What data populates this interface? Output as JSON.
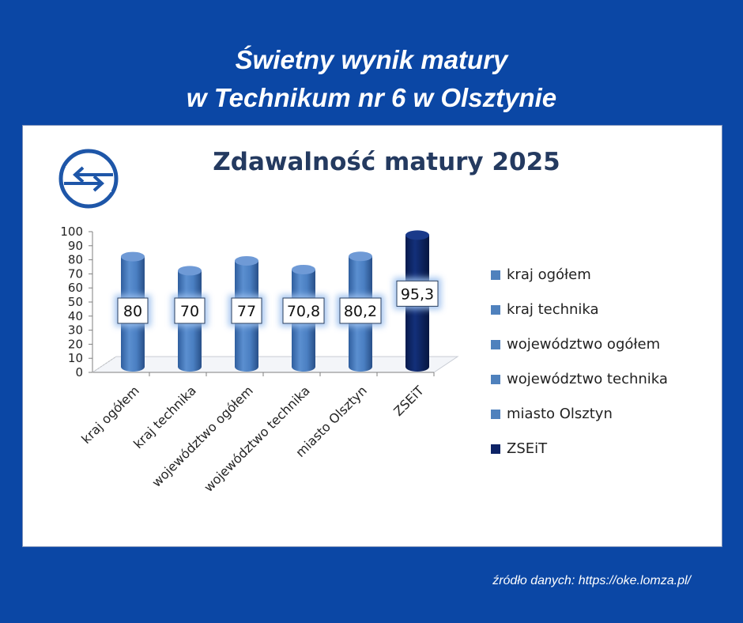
{
  "header": {
    "line1": "Świetny wynik matury",
    "line2": "w Technikum nr 6 w Olsztynie"
  },
  "footer": {
    "source": "źródło danych: https://oke.lomza.pl/"
  },
  "chart_data": {
    "type": "bar",
    "title": "Zdawalność matury 2025",
    "categories": [
      "kraj ogółem",
      "kraj technika",
      "województwo ogółem",
      "województwo technika",
      "miasto Olsztyn",
      "ZSEiT"
    ],
    "values": [
      80,
      70,
      77,
      70.8,
      80.2,
      95.3
    ],
    "data_labels": [
      "80",
      "70",
      "77",
      "70,8",
      "80,2",
      "95,3"
    ],
    "yticks": [
      "0",
      "10",
      "20",
      "30",
      "40",
      "50",
      "60",
      "70",
      "80",
      "90",
      "100"
    ],
    "ylim": [
      0,
      100
    ],
    "legend": [
      "kraj ogółem",
      "kraj technika",
      "województwo ogółem",
      "województwo technika",
      "miasto Olsztyn",
      "ZSEiT"
    ],
    "legend_position": "right",
    "colors": {
      "default": "#4f81bd",
      "highlight": "#0d2366"
    },
    "highlight_index": 5,
    "bar_style": "3d-cylinder"
  }
}
